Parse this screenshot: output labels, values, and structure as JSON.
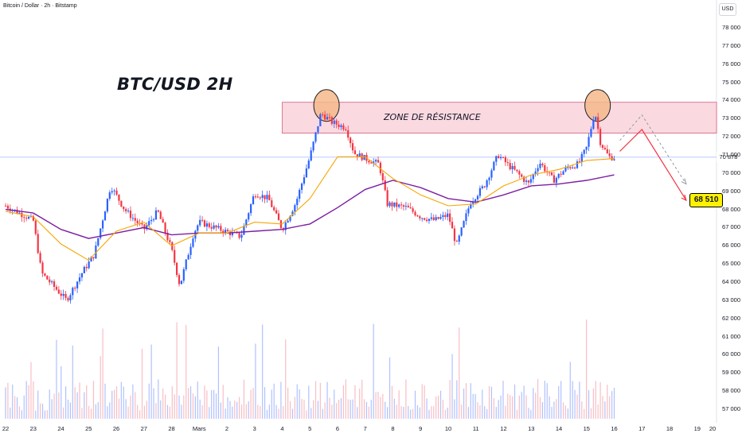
{
  "header": {
    "symbol_line": "Bitcoin / Dollar · 2h · Bitstamp",
    "currency_button": "USD"
  },
  "annotations": {
    "title": "BTC/USD 2H",
    "zone_label": "ZONE DE RÉSISTANCE",
    "target_label": "68 510",
    "current_price": "70 878"
  },
  "colors": {
    "up": "#2962ff",
    "down": "#f23645",
    "ema_fast": "#f7a600",
    "ema_slow": "#7b1fa2",
    "zone_fill": "#f8c9d4",
    "circle_fill": "#f5b88b",
    "arrow": "#f23645",
    "arrow_dashed": "#9598a1"
  },
  "chart_data": {
    "type": "candlestick",
    "ylim": [
      56400,
      78800
    ],
    "yticks": [
      57000,
      58000,
      59000,
      60000,
      61000,
      62000,
      63000,
      64000,
      65000,
      66000,
      67000,
      68000,
      69000,
      70000,
      71000,
      72000,
      73000,
      74000,
      75000,
      76000,
      77000,
      78000
    ],
    "ytick_labels": [
      "57 000",
      "58 000",
      "59 000",
      "60 000",
      "61 000",
      "62 000",
      "63 000",
      "64 000",
      "65 000",
      "66 000",
      "67 000",
      "68 000",
      "69 000",
      "70 000",
      "71 000",
      "72 000",
      "73 000",
      "74 000",
      "75 000",
      "76 000",
      "77 000",
      "78 000"
    ],
    "x_labels": [
      "22",
      "23",
      "24",
      "25",
      "26",
      "27",
      "28",
      "Mars",
      "2",
      "3",
      "4",
      "5",
      "6",
      "7",
      "8",
      "9",
      "10",
      "11",
      "12",
      "13",
      "14",
      "15",
      "16",
      "17",
      "18",
      "19",
      "20"
    ],
    "key_points": [
      {
        "day": 22.0,
        "price": 68200
      },
      {
        "day": 23.0,
        "price": 67400
      },
      {
        "day": 23.3,
        "price": 64500
      },
      {
        "day": 24.2,
        "price": 63000
      },
      {
        "day": 24.8,
        "price": 64600
      },
      {
        "day": 25.2,
        "price": 65500
      },
      {
        "day": 25.8,
        "price": 69300
      },
      {
        "day": 26.3,
        "price": 68000
      },
      {
        "day": 27.0,
        "price": 66900
      },
      {
        "day": 27.5,
        "price": 67900
      },
      {
        "day": 28.0,
        "price": 65800
      },
      {
        "day": 28.3,
        "price": 63800
      },
      {
        "day": 28.8,
        "price": 66700
      },
      {
        "day": 29.0,
        "price": 67300
      },
      {
        "day": 30.5,
        "price": 66500
      },
      {
        "day": 31.0,
        "price": 68900
      },
      {
        "day": 31.5,
        "price": 68600
      },
      {
        "day": 32.0,
        "price": 66900
      },
      {
        "day": 32.5,
        "price": 68400
      },
      {
        "day": 33.0,
        "price": 70900
      },
      {
        "day": 33.4,
        "price": 73300
      },
      {
        "day": 33.8,
        "price": 72800
      },
      {
        "day": 34.3,
        "price": 72500
      },
      {
        "day": 34.6,
        "price": 71100
      },
      {
        "day": 35.0,
        "price": 70800
      },
      {
        "day": 35.5,
        "price": 70500
      },
      {
        "day": 35.8,
        "price": 68300
      },
      {
        "day": 36.5,
        "price": 68100
      },
      {
        "day": 37.0,
        "price": 67600
      },
      {
        "day": 37.5,
        "price": 67400
      },
      {
        "day": 38.0,
        "price": 67700
      },
      {
        "day": 38.3,
        "price": 66000
      },
      {
        "day": 38.8,
        "price": 68400
      },
      {
        "day": 39.3,
        "price": 69300
      },
      {
        "day": 39.8,
        "price": 71000
      },
      {
        "day": 40.2,
        "price": 70400
      },
      {
        "day": 40.5,
        "price": 70000
      },
      {
        "day": 40.9,
        "price": 69400
      },
      {
        "day": 41.3,
        "price": 70600
      },
      {
        "day": 41.8,
        "price": 69600
      },
      {
        "day": 42.3,
        "price": 70300
      },
      {
        "day": 42.7,
        "price": 70500
      },
      {
        "day": 43.0,
        "price": 71400
      },
      {
        "day": 43.3,
        "price": 73400
      },
      {
        "day": 43.5,
        "price": 71700
      },
      {
        "day": 43.8,
        "price": 70900
      },
      {
        "day": 44.0,
        "price": 70850
      }
    ],
    "ema_fast_points": [
      {
        "day": 22.0,
        "price": 67900
      },
      {
        "day": 23.0,
        "price": 67600
      },
      {
        "day": 24.0,
        "price": 66100
      },
      {
        "day": 25.0,
        "price": 65200
      },
      {
        "day": 26.0,
        "price": 66800
      },
      {
        "day": 27.0,
        "price": 67300
      },
      {
        "day": 28.0,
        "price": 66000
      },
      {
        "day": 29.0,
        "price": 66700
      },
      {
        "day": 30.0,
        "price": 66700
      },
      {
        "day": 31.0,
        "price": 67300
      },
      {
        "day": 32.0,
        "price": 67200
      },
      {
        "day": 33.0,
        "price": 68600
      },
      {
        "day": 34.0,
        "price": 70900
      },
      {
        "day": 35.0,
        "price": 70900
      },
      {
        "day": 36.0,
        "price": 69700
      },
      {
        "day": 37.0,
        "price": 68800
      },
      {
        "day": 38.0,
        "price": 68200
      },
      {
        "day": 39.0,
        "price": 68300
      },
      {
        "day": 40.0,
        "price": 69300
      },
      {
        "day": 41.0,
        "price": 69900
      },
      {
        "day": 42.0,
        "price": 70200
      },
      {
        "day": 43.0,
        "price": 70700
      },
      {
        "day": 44.0,
        "price": 70800
      }
    ],
    "ema_slow_points": [
      {
        "day": 22.0,
        "price": 68000
      },
      {
        "day": 23.0,
        "price": 67800
      },
      {
        "day": 24.0,
        "price": 66900
      },
      {
        "day": 25.0,
        "price": 66400
      },
      {
        "day": 26.0,
        "price": 66700
      },
      {
        "day": 27.0,
        "price": 67000
      },
      {
        "day": 28.0,
        "price": 66600
      },
      {
        "day": 29.0,
        "price": 66700
      },
      {
        "day": 30.0,
        "price": 66700
      },
      {
        "day": 31.0,
        "price": 66800
      },
      {
        "day": 32.0,
        "price": 66900
      },
      {
        "day": 33.0,
        "price": 67200
      },
      {
        "day": 34.0,
        "price": 68100
      },
      {
        "day": 35.0,
        "price": 69100
      },
      {
        "day": 36.0,
        "price": 69600
      },
      {
        "day": 37.0,
        "price": 69200
      },
      {
        "day": 38.0,
        "price": 68600
      },
      {
        "day": 39.0,
        "price": 68400
      },
      {
        "day": 40.0,
        "price": 68800
      },
      {
        "day": 41.0,
        "price": 69300
      },
      {
        "day": 42.0,
        "price": 69400
      },
      {
        "day": 43.0,
        "price": 69600
      },
      {
        "day": 44.0,
        "price": 69900
      }
    ],
    "resistance_zone": {
      "price_low": 72200,
      "price_high": 73900,
      "day_start": 32.0,
      "day_end": 47.7
    },
    "highlight_circles": [
      {
        "day": 33.6,
        "price": 73900
      },
      {
        "day": 43.4,
        "price": 73900
      }
    ],
    "projection": {
      "solid": [
        {
          "day": 44.2,
          "price": 71200
        },
        {
          "day": 45.0,
          "price": 72400
        },
        {
          "day": 46.6,
          "price": 68500
        }
      ],
      "dashed": [
        {
          "day": 44.2,
          "price": 71800
        },
        {
          "day": 45.0,
          "price": 73200
        },
        {
          "day": 46.6,
          "price": 69400
        }
      ]
    },
    "current_price": 70878,
    "target_price": 68510
  }
}
